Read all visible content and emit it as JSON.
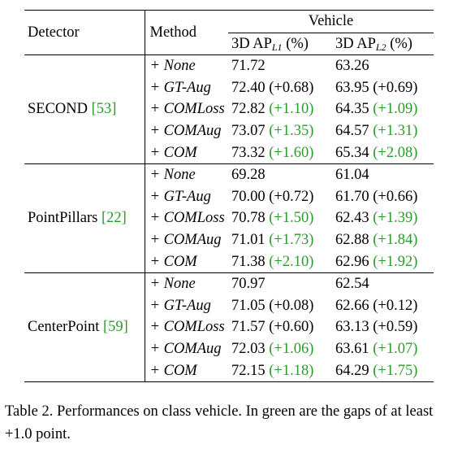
{
  "table": {
    "header": {
      "detector": "Detector",
      "method": "Method",
      "group": "Vehicle",
      "col_l1": {
        "prefix": "3D AP",
        "sub": "L1",
        "suffix": " (%)"
      },
      "col_l2": {
        "prefix": "3D AP",
        "sub": "L2",
        "suffix": " (%)"
      }
    },
    "groups": [
      {
        "detector": "SECOND",
        "ref": "[53]",
        "rows": [
          {
            "method": "+ None",
            "l1": "71.72",
            "l1_gap": "",
            "l1_green": false,
            "l2": "63.26",
            "l2_gap": "",
            "l2_green": false
          },
          {
            "method": "+ GT-Aug",
            "l1": "72.40",
            "l1_gap": "(+0.68)",
            "l1_green": false,
            "l2": "63.95",
            "l2_gap": "(+0.69)",
            "l2_green": false
          },
          {
            "method": "+ COMLoss",
            "l1": "72.82",
            "l1_gap": "(+1.10)",
            "l1_green": true,
            "l2": "64.35",
            "l2_gap": "(+1.09)",
            "l2_green": true
          },
          {
            "method": "+ COMAug",
            "l1": "73.07",
            "l1_gap": "(+1.35)",
            "l1_green": true,
            "l2": "64.57",
            "l2_gap": "(+1.31)",
            "l2_green": true
          },
          {
            "method": "+ COM",
            "l1": "73.32",
            "l1_gap": "(+1.60)",
            "l1_green": true,
            "l2": "65.34",
            "l2_gap": "(+2.08)",
            "l2_green": true
          }
        ]
      },
      {
        "detector": "PointPillars",
        "ref": "[22]",
        "rows": [
          {
            "method": "+ None",
            "l1": "69.28",
            "l1_gap": "",
            "l1_green": false,
            "l2": "61.04",
            "l2_gap": "",
            "l2_green": false
          },
          {
            "method": "+ GT-Aug",
            "l1": "70.00",
            "l1_gap": "(+0.72)",
            "l1_green": false,
            "l2": "61.70",
            "l2_gap": "(+0.66)",
            "l2_green": false
          },
          {
            "method": "+ COMLoss",
            "l1": "70.78",
            "l1_gap": "(+1.50)",
            "l1_green": true,
            "l2": "62.43",
            "l2_gap": "(+1.39)",
            "l2_green": true
          },
          {
            "method": "+ COMAug",
            "l1": "71.01",
            "l1_gap": "(+1.73)",
            "l1_green": true,
            "l2": "62.88",
            "l2_gap": "(+1.84)",
            "l2_green": true
          },
          {
            "method": "+ COM",
            "l1": "71.38",
            "l1_gap": "(+2.10)",
            "l1_green": true,
            "l2": "62.96",
            "l2_gap": "(+1.92)",
            "l2_green": true
          }
        ]
      },
      {
        "detector": "CenterPoint",
        "ref": "[59]",
        "rows": [
          {
            "method": "+ None",
            "l1": "70.97",
            "l1_gap": "",
            "l1_green": false,
            "l2": "62.54",
            "l2_gap": "",
            "l2_green": false
          },
          {
            "method": "+ GT-Aug",
            "l1": "71.05",
            "l1_gap": "(+0.08)",
            "l1_green": false,
            "l2": "62.66",
            "l2_gap": "(+0.12)",
            "l2_green": false
          },
          {
            "method": "+ COMLoss",
            "l1": "71.57",
            "l1_gap": "(+0.60)",
            "l1_green": false,
            "l2": "63.13",
            "l2_gap": "(+0.59)",
            "l2_green": false
          },
          {
            "method": "+ COMAug",
            "l1": "72.03",
            "l1_gap": "(+1.06)",
            "l1_green": true,
            "l2": "63.61",
            "l2_gap": "(+1.07)",
            "l2_green": true
          },
          {
            "method": "+ COM",
            "l1": "72.15",
            "l1_gap": "(+1.18)",
            "l1_green": true,
            "l2": "64.29",
            "l2_gap": "(+1.75)",
            "l2_green": true
          }
        ]
      }
    ]
  },
  "caption": "Table 2. Performances on class vehicle. In green are the gaps of at least +1.0 point.",
  "colors": {
    "gap_green": "#2a9a2a",
    "ref_green": "#2a9a2a"
  }
}
